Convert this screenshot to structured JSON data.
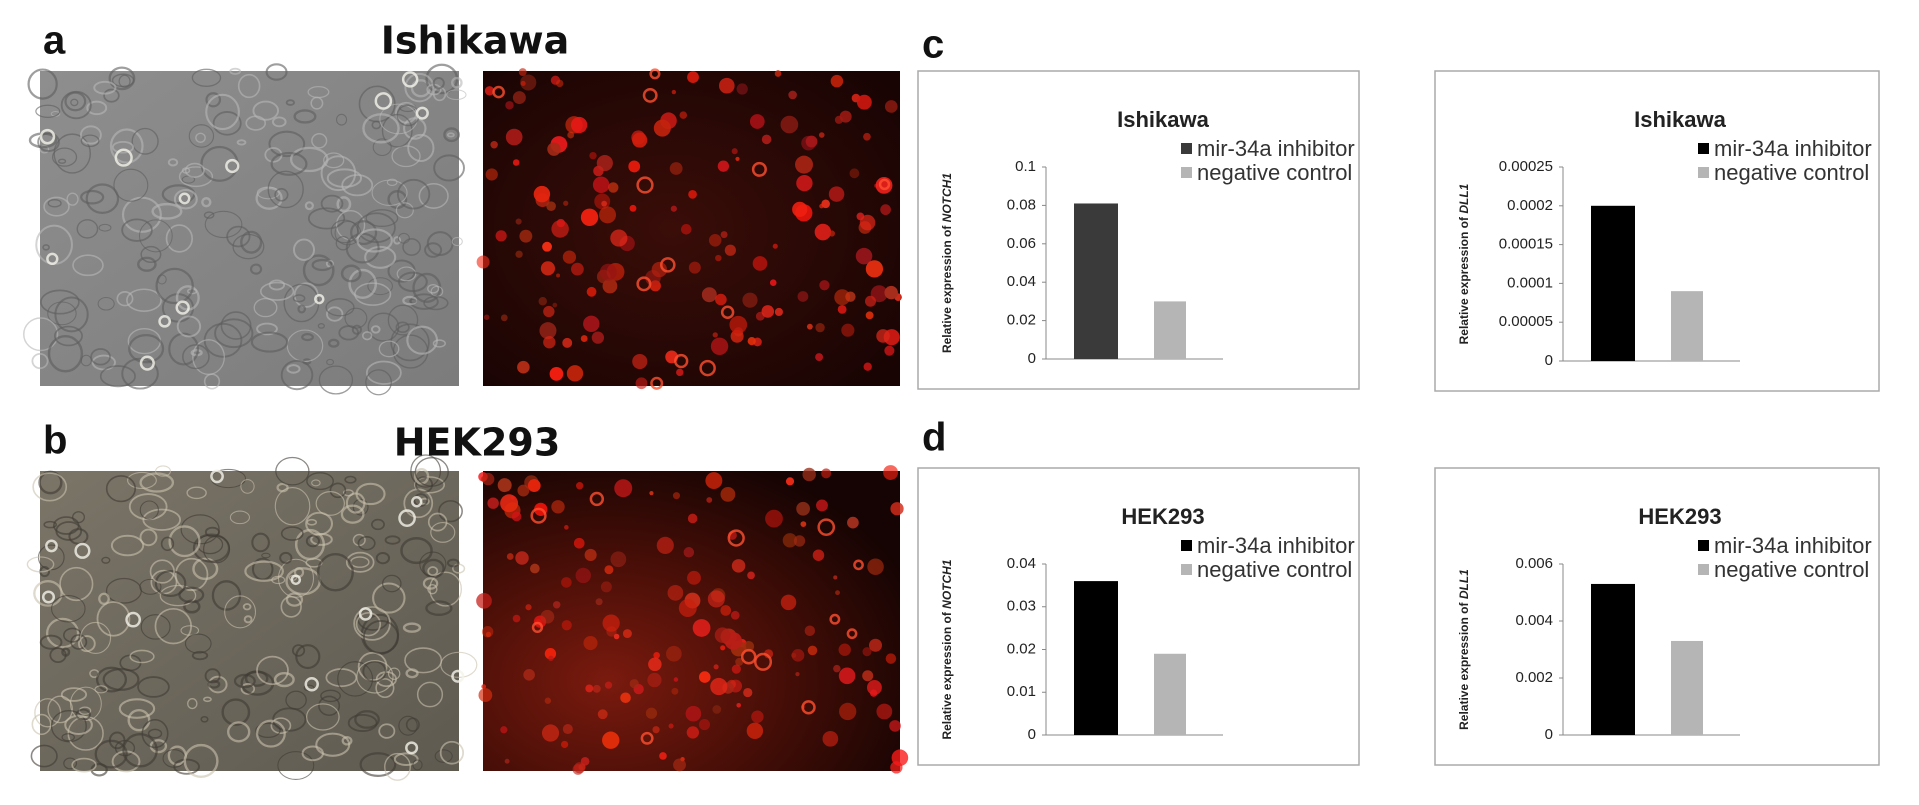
{
  "panel_labels": [
    "a",
    "b",
    "c",
    "d"
  ],
  "image_titles": [
    "Ishikawa",
    "HEK293"
  ],
  "chart_data": [
    {
      "type": "bar",
      "title": "Ishikawa",
      "ylabel": {
        "text": "Relative expression of",
        "gene": "NOTCH1"
      },
      "ylim": [
        0,
        0.1
      ],
      "yticks": [
        0,
        0.02,
        0.04,
        0.06,
        0.08,
        0.1
      ],
      "grid": false,
      "series": [
        {
          "name": "mir-34a inhibitor",
          "color": "#3a3a3a",
          "values": [
            0.081
          ]
        },
        {
          "name": "negative control",
          "color": "#b5b5b5",
          "values": [
            0.03
          ]
        }
      ]
    },
    {
      "type": "bar",
      "title": "Ishikawa",
      "ylabel": {
        "text": "Relative expression of",
        "gene": "DLL1"
      },
      "ylim": [
        0,
        0.00025
      ],
      "yticks": [
        0,
        5e-05,
        0.0001,
        0.00015,
        0.0002,
        0.00025
      ],
      "grid": false,
      "series": [
        {
          "name": "mir-34a inhibitor",
          "color": "#000000",
          "values": [
            0.0002
          ]
        },
        {
          "name": "negative control",
          "color": "#b5b5b5",
          "values": [
            9e-05
          ]
        }
      ]
    },
    {
      "type": "bar",
      "title": "HEK293",
      "ylabel": {
        "text": "Relative expression of",
        "gene": "NOTCH1"
      },
      "ylim": [
        0,
        0.04
      ],
      "yticks": [
        0,
        0.01,
        0.02,
        0.03,
        0.04
      ],
      "grid": false,
      "series": [
        {
          "name": "mir-34a inhibitor",
          "color": "#000000",
          "values": [
            0.036
          ]
        },
        {
          "name": "negative control",
          "color": "#b5b5b5",
          "values": [
            0.019
          ]
        }
      ]
    },
    {
      "type": "bar",
      "title": "HEK293",
      "ylabel": {
        "text": "Relative expression of",
        "gene": "DLL1"
      },
      "ylim": [
        0,
        0.006
      ],
      "yticks": [
        0,
        0.002,
        0.004,
        0.006
      ],
      "grid": false,
      "series": [
        {
          "name": "mir-34a inhibitor",
          "color": "#000000",
          "values": [
            0.0053
          ]
        },
        {
          "name": "negative control",
          "color": "#b5b5b5",
          "values": [
            0.0033
          ]
        }
      ]
    }
  ]
}
